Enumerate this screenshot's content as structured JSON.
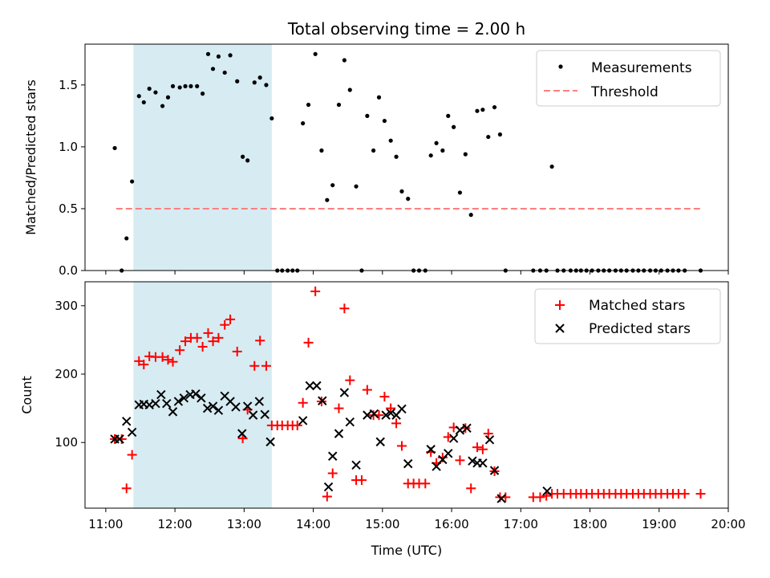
{
  "figure": {
    "title": "Total observing time = 2.00 h",
    "xlabel": "Time (UTC)",
    "xticks": [
      "11:00",
      "12:00",
      "13:00",
      "14:00",
      "15:00",
      "16:00",
      "17:00",
      "18:00",
      "19:00",
      "20:00"
    ]
  },
  "colors": {
    "shade": "#add8e6",
    "threshold": "#ff7f7f",
    "matched": "#ff0000",
    "predicted": "#000000",
    "measurement": "#000000"
  },
  "chart_data": [
    {
      "type": "scatter",
      "panel": "top",
      "ylabel": "Matched/Predicted stars",
      "xlim": [
        10.7,
        20.0
      ],
      "ylim": [
        0,
        1.83
      ],
      "yticks": [
        0.0,
        0.5,
        1.0,
        1.5
      ],
      "ytick_labels": [
        "0.0",
        "0.5",
        "1.0",
        "1.5"
      ],
      "shaded_span": [
        11.4,
        13.4
      ],
      "legend": {
        "position": "top-right",
        "measurements_label": "Measurements",
        "threshold_label": "Threshold"
      },
      "threshold": {
        "value": 0.5,
        "x_range": [
          11.15,
          19.6
        ]
      },
      "series": [
        {
          "name": "Measurements",
          "x": [
            11.13,
            11.23,
            11.3,
            11.38,
            11.48,
            11.55,
            11.63,
            11.72,
            11.82,
            11.9,
            11.97,
            12.07,
            12.15,
            12.23,
            12.32,
            12.4,
            12.48,
            12.55,
            12.63,
            12.72,
            12.8,
            12.9,
            12.98,
            13.05,
            13.15,
            13.23,
            13.32,
            13.4,
            13.48,
            13.55,
            13.63,
            13.7,
            13.77,
            13.85,
            13.93,
            14.03,
            14.12,
            14.2,
            14.28,
            14.37,
            14.45,
            14.53,
            14.62,
            14.7,
            14.78,
            14.87,
            14.95,
            15.03,
            15.12,
            15.2,
            15.28,
            15.37,
            15.45,
            15.53,
            15.62,
            15.7,
            15.78,
            15.87,
            15.95,
            16.03,
            16.12,
            16.2,
            16.28,
            16.37,
            16.45,
            16.53,
            16.62,
            16.7,
            16.78,
            17.18,
            17.28,
            17.37,
            17.45,
            17.53,
            17.62,
            17.72,
            17.8,
            17.87,
            17.95,
            18.03,
            18.12,
            18.2,
            18.28,
            18.37,
            18.45,
            18.53,
            18.62,
            18.7,
            18.78,
            18.87,
            18.95,
            19.03,
            19.12,
            19.2,
            19.28,
            19.37,
            19.6
          ],
          "y": [
            0.99,
            0.0,
            0.26,
            0.72,
            1.41,
            1.36,
            1.47,
            1.44,
            1.33,
            1.4,
            1.49,
            1.48,
            1.49,
            1.49,
            1.49,
            1.43,
            1.75,
            1.63,
            1.73,
            1.6,
            1.74,
            1.53,
            0.92,
            0.89,
            1.52,
            1.56,
            1.5,
            1.23,
            0.0,
            0.0,
            0.0,
            0.0,
            0.0,
            1.19,
            1.34,
            1.75,
            0.97,
            0.57,
            0.69,
            1.34,
            1.7,
            1.46,
            0.68,
            0.0,
            1.25,
            0.97,
            1.4,
            1.21,
            1.05,
            0.92,
            0.64,
            0.58,
            0.0,
            0.0,
            0.0,
            0.93,
            1.03,
            0.97,
            1.25,
            1.16,
            0.63,
            0.94,
            0.45,
            1.29,
            1.3,
            1.08,
            1.32,
            1.1,
            0.0,
            0.0,
            0.0,
            0.0,
            0.84,
            0.0,
            0.0,
            0.0,
            0.0,
            0.0,
            0.0,
            0.0,
            0.0,
            0.0,
            0.0,
            0.0,
            0.0,
            0.0,
            0.0,
            0.0,
            0.0,
            0.0,
            0.0,
            0.0,
            0.0,
            0.0,
            0.0,
            0.0,
            0.0
          ]
        }
      ]
    },
    {
      "type": "scatter",
      "panel": "bottom",
      "ylabel": "Count",
      "xlim": [
        10.7,
        20.0
      ],
      "ylim": [
        4,
        335
      ],
      "yticks": [
        100,
        200,
        300
      ],
      "ytick_labels": [
        "100",
        "200",
        "300"
      ],
      "shaded_span": [
        11.4,
        13.4
      ],
      "legend": {
        "position": "top-right",
        "matched_label": "Matched stars",
        "predicted_label": "Predicted stars"
      },
      "series": [
        {
          "name": "Matched stars",
          "marker": "+",
          "x": [
            11.13,
            11.23,
            11.3,
            11.38,
            11.48,
            11.55,
            11.63,
            11.72,
            11.82,
            11.9,
            11.97,
            12.07,
            12.15,
            12.23,
            12.32,
            12.4,
            12.48,
            12.55,
            12.63,
            12.72,
            12.8,
            12.9,
            12.98,
            13.05,
            13.15,
            13.23,
            13.32,
            13.4,
            13.48,
            13.55,
            13.63,
            13.7,
            13.77,
            13.85,
            13.93,
            14.03,
            14.12,
            14.2,
            14.28,
            14.37,
            14.45,
            14.53,
            14.62,
            14.7,
            14.78,
            14.87,
            14.95,
            15.03,
            15.12,
            15.2,
            15.28,
            15.37,
            15.45,
            15.53,
            15.62,
            15.7,
            15.78,
            15.87,
            15.95,
            16.03,
            16.12,
            16.2,
            16.28,
            16.37,
            16.45,
            16.53,
            16.62,
            16.7,
            16.78,
            17.18,
            17.28,
            17.37,
            17.45,
            17.53,
            17.62,
            17.72,
            17.8,
            17.87,
            17.95,
            18.03,
            18.12,
            18.2,
            18.28,
            18.37,
            18.45,
            18.53,
            18.62,
            18.7,
            18.78,
            18.87,
            18.95,
            19.03,
            19.12,
            19.2,
            19.28,
            19.37,
            19.6
          ],
          "y": [
            105,
            105,
            33,
            82,
            219,
            214,
            226,
            225,
            225,
            221,
            218,
            235,
            248,
            253,
            253,
            240,
            260,
            248,
            253,
            272,
            280,
            233,
            106,
            148,
            212,
            249,
            212,
            125,
            125,
            125,
            125,
            125,
            125,
            158,
            246,
            321,
            160,
            21,
            55,
            150,
            296,
            191,
            45,
            45,
            177,
            140,
            140,
            167,
            150,
            128,
            95,
            40,
            40,
            40,
            40,
            86,
            70,
            78,
            108,
            122,
            74,
            121,
            33,
            93,
            90,
            113,
            58,
            20,
            20,
            20,
            20,
            22,
            25,
            25,
            25,
            25,
            25,
            25,
            25,
            25,
            25,
            25,
            25,
            25,
            25,
            25,
            25,
            25,
            25,
            25,
            25,
            25,
            25,
            25,
            25,
            25,
            25
          ]
        },
        {
          "name": "Predicted stars",
          "marker": "x",
          "x": [
            11.13,
            11.2,
            11.3,
            11.38,
            11.48,
            11.55,
            11.63,
            11.72,
            11.8,
            11.88,
            11.97,
            12.05,
            12.13,
            12.22,
            12.3,
            12.38,
            12.47,
            12.55,
            12.63,
            12.72,
            12.8,
            12.88,
            12.97,
            13.05,
            13.13,
            13.22,
            13.3,
            13.38,
            13.85,
            13.95,
            14.05,
            14.13,
            14.22,
            14.28,
            14.37,
            14.45,
            14.53,
            14.62,
            14.78,
            14.88,
            14.97,
            15.05,
            15.12,
            15.2,
            15.28,
            15.37,
            15.7,
            15.78,
            15.87,
            15.95,
            16.03,
            16.12,
            16.22,
            16.3,
            16.37,
            16.45,
            16.55,
            16.62,
            16.72,
            17.38
          ],
          "y": [
            105,
            105,
            131,
            115,
            155,
            156,
            155,
            157,
            170,
            157,
            145,
            160,
            165,
            170,
            171,
            165,
            150,
            153,
            147,
            168,
            160,
            152,
            113,
            153,
            140,
            160,
            141,
            101,
            132,
            183,
            183,
            161,
            35,
            80,
            113,
            173,
            130,
            67,
            140,
            142,
            101,
            140,
            143,
            140,
            149,
            69,
            90,
            65,
            75,
            84,
            106,
            118,
            121,
            73,
            70,
            70,
            104,
            59,
            18,
            29
          ]
        }
      ]
    }
  ]
}
